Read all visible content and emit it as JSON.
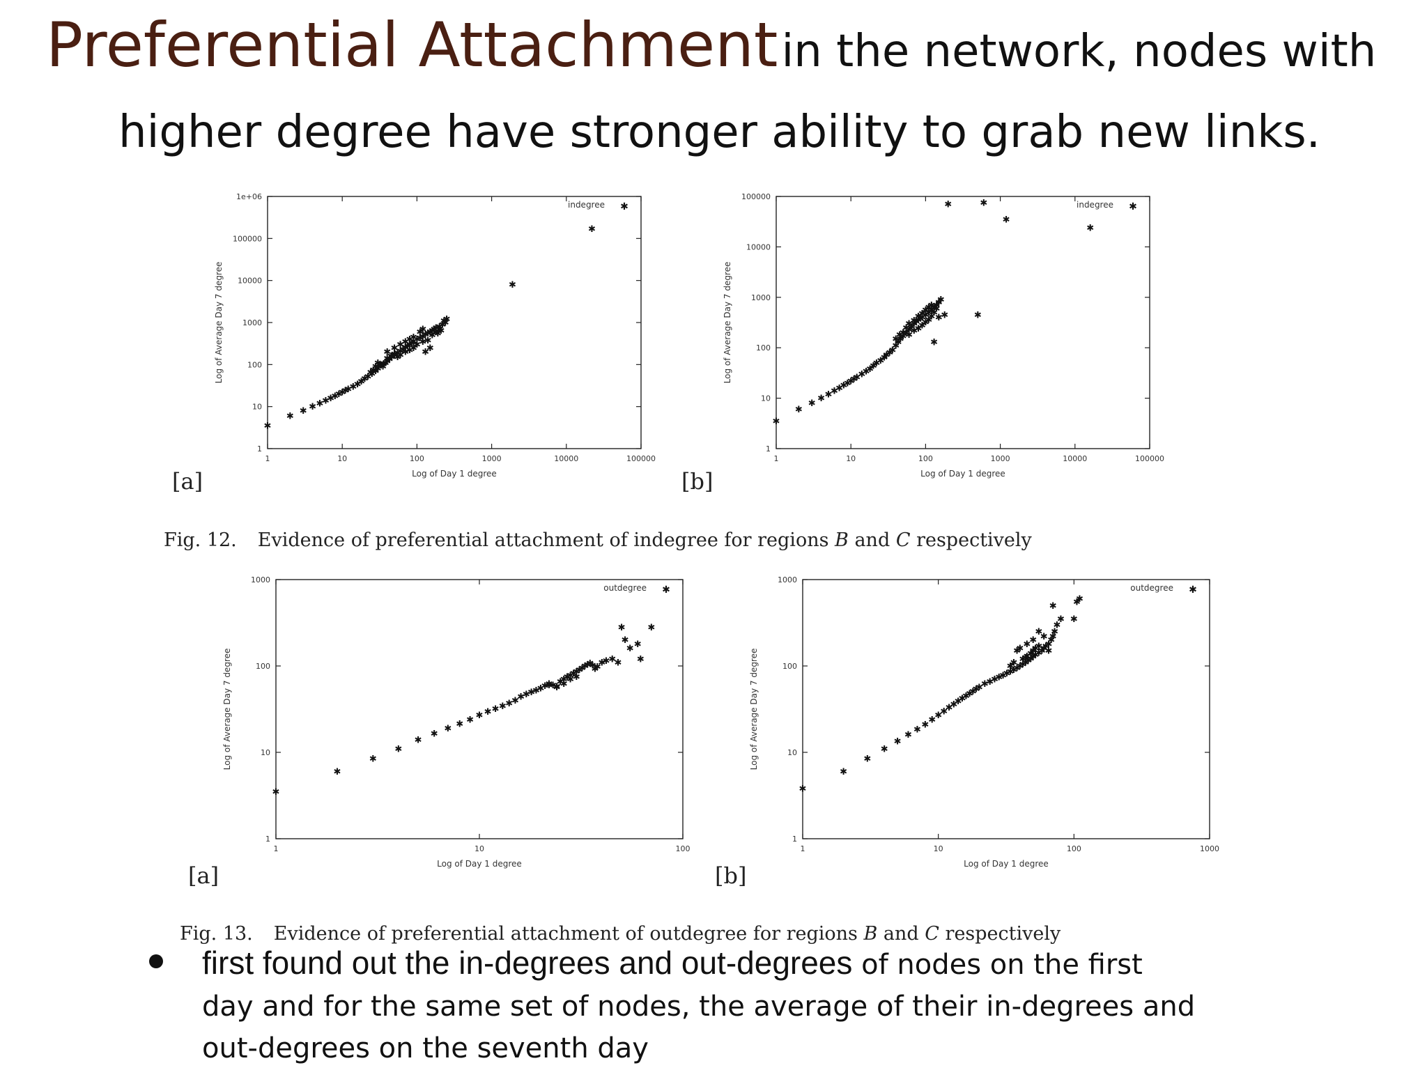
{
  "slide": {
    "title_main": "Preferential Attachment",
    "title_sub_1": "in the network, nodes with",
    "title_sub_2": "higher degree have stronger ability to grab new links.",
    "bullet": {
      "line1_a": "first found out the in-degrees and out-degrees",
      "line1_b": " of nodes on the first",
      "line2": "day and for the same set of nodes, the average of their in-degrees and",
      "line3": "out-degrees on the seventh day"
    }
  },
  "figures": {
    "fig12": {
      "num": "Fig. 12.",
      "text_before": "Evidence of preferential attachment of indegree for regions ",
      "region_b": "B",
      "and": " and ",
      "region_c": "C",
      "text_after": " respectively",
      "panel_a": "[a]",
      "panel_b": "[b]"
    },
    "fig13": {
      "num": "Fig. 13.",
      "text_before": "Evidence of preferential attachment of outdegree for regions ",
      "region_b": "B",
      "and": " and ",
      "region_c": "C",
      "text_after": " respectively",
      "panel_a": "[a]",
      "panel_b": "[b]"
    }
  },
  "chart_data": [
    {
      "id": "fig12a",
      "type": "scatter",
      "log_x": true,
      "log_y": true,
      "xlabel": "Log of Day 1 degree",
      "ylabel": "Log of Average Day 7 degree",
      "legend": "indegree",
      "legend_position": "top-right",
      "xlim": [
        1,
        100000
      ],
      "ylim": [
        1,
        1000000
      ],
      "xticks": [
        {
          "v": 1,
          "label": "1"
        },
        {
          "v": 10,
          "label": "10"
        },
        {
          "v": 100,
          "label": "100"
        },
        {
          "v": 1000,
          "label": "1000"
        },
        {
          "v": 10000,
          "label": "10000"
        },
        {
          "v": 100000,
          "label": "100000"
        }
      ],
      "yticks": [
        {
          "v": 1,
          "label": "1"
        },
        {
          "v": 10,
          "label": "10"
        },
        {
          "v": 100,
          "label": "100"
        },
        {
          "v": 1000,
          "label": "1000"
        },
        {
          "v": 10000,
          "label": "10000"
        },
        {
          "v": 100000,
          "label": "100000"
        },
        {
          "v": 1000000,
          "label": "1e+06"
        }
      ],
      "points": [
        [
          1,
          3.5
        ],
        [
          2,
          6
        ],
        [
          3,
          8
        ],
        [
          4,
          10
        ],
        [
          5,
          12
        ],
        [
          6,
          14
        ],
        [
          7,
          16
        ],
        [
          8,
          18
        ],
        [
          9,
          20
        ],
        [
          10,
          22
        ],
        [
          11,
          24
        ],
        [
          12,
          26
        ],
        [
          14,
          30
        ],
        [
          16,
          34
        ],
        [
          18,
          40
        ],
        [
          20,
          46
        ],
        [
          22,
          52
        ],
        [
          25,
          60
        ],
        [
          28,
          70
        ],
        [
          30,
          80
        ],
        [
          33,
          95
        ],
        [
          36,
          105
        ],
        [
          40,
          120
        ],
        [
          43,
          135
        ],
        [
          46,
          150
        ],
        [
          50,
          170
        ],
        [
          55,
          190
        ],
        [
          60,
          210
        ],
        [
          65,
          230
        ],
        [
          70,
          260
        ],
        [
          75,
          280
        ],
        [
          80,
          300
        ],
        [
          85,
          330
        ],
        [
          90,
          360
        ],
        [
          100,
          400
        ],
        [
          110,
          430
        ],
        [
          120,
          470
        ],
        [
          130,
          520
        ],
        [
          140,
          560
        ],
        [
          150,
          600
        ],
        [
          160,
          650
        ],
        [
          170,
          700
        ],
        [
          180,
          750
        ],
        [
          200,
          800
        ],
        [
          220,
          900
        ],
        [
          240,
          1000
        ],
        [
          250,
          1200
        ],
        [
          200,
          700
        ],
        [
          180,
          600
        ],
        [
          160,
          500
        ],
        [
          140,
          380
        ],
        [
          120,
          350
        ],
        [
          100,
          300
        ],
        [
          90,
          250
        ],
        [
          80,
          220
        ],
        [
          70,
          200
        ],
        [
          60,
          170
        ],
        [
          55,
          150
        ],
        [
          50,
          180
        ],
        [
          45,
          160
        ],
        [
          40,
          140
        ],
        [
          38,
          110
        ],
        [
          35,
          90
        ],
        [
          32,
          100
        ],
        [
          30,
          110
        ],
        [
          28,
          90
        ],
        [
          26,
          75
        ],
        [
          24,
          65
        ],
        [
          150,
          250
        ],
        [
          130,
          200
        ],
        [
          190,
          550
        ],
        [
          210,
          650
        ],
        [
          60,
          300
        ],
        [
          70,
          350
        ],
        [
          80,
          400
        ],
        [
          90,
          450
        ],
        [
          110,
          600
        ],
        [
          120,
          700
        ],
        [
          50,
          250
        ],
        [
          40,
          200
        ],
        [
          230,
          1100
        ],
        [
          1900,
          8000
        ],
        [
          22000,
          170000
        ]
      ]
    },
    {
      "id": "fig12b",
      "type": "scatter",
      "log_x": true,
      "log_y": true,
      "xlabel": "Log of Day 1 degree",
      "ylabel": "Log of Average Day 7 degree",
      "legend": "indegree",
      "legend_position": "top-right",
      "xlim": [
        1,
        100000
      ],
      "ylim": [
        1,
        100000
      ],
      "xticks": [
        {
          "v": 1,
          "label": "1"
        },
        {
          "v": 10,
          "label": "10"
        },
        {
          "v": 100,
          "label": "100"
        },
        {
          "v": 1000,
          "label": "1000"
        },
        {
          "v": 10000,
          "label": "10000"
        },
        {
          "v": 100000,
          "label": "100000"
        }
      ],
      "yticks": [
        {
          "v": 1,
          "label": "1"
        },
        {
          "v": 10,
          "label": "10"
        },
        {
          "v": 100,
          "label": "100"
        },
        {
          "v": 1000,
          "label": "1000"
        },
        {
          "v": 10000,
          "label": "10000"
        },
        {
          "v": 100000,
          "label": "100000"
        }
      ],
      "points": [
        [
          1,
          3.5
        ],
        [
          2,
          6
        ],
        [
          3,
          8
        ],
        [
          4,
          10
        ],
        [
          5,
          12
        ],
        [
          6,
          14
        ],
        [
          7,
          16
        ],
        [
          8,
          18
        ],
        [
          9,
          20
        ],
        [
          10,
          22
        ],
        [
          11,
          24
        ],
        [
          12,
          26
        ],
        [
          14,
          30
        ],
        [
          16,
          34
        ],
        [
          18,
          38
        ],
        [
          20,
          44
        ],
        [
          22,
          50
        ],
        [
          25,
          56
        ],
        [
          28,
          64
        ],
        [
          30,
          72
        ],
        [
          33,
          80
        ],
        [
          36,
          90
        ],
        [
          40,
          110
        ],
        [
          43,
          130
        ],
        [
          46,
          150
        ],
        [
          50,
          170
        ],
        [
          55,
          200
        ],
        [
          60,
          230
        ],
        [
          65,
          260
        ],
        [
          70,
          300
        ],
        [
          75,
          330
        ],
        [
          80,
          360
        ],
        [
          85,
          380
        ],
        [
          90,
          400
        ],
        [
          100,
          450
        ],
        [
          110,
          500
        ],
        [
          120,
          560
        ],
        [
          130,
          620
        ],
        [
          140,
          700
        ],
        [
          150,
          800
        ],
        [
          160,
          900
        ],
        [
          140,
          600
        ],
        [
          130,
          500
        ],
        [
          120,
          420
        ],
        [
          110,
          360
        ],
        [
          100,
          320
        ],
        [
          90,
          280
        ],
        [
          80,
          240
        ],
        [
          70,
          220
        ],
        [
          60,
          180
        ],
        [
          55,
          250
        ],
        [
          50,
          200
        ],
        [
          45,
          180
        ],
        [
          40,
          150
        ],
        [
          60,
          300
        ],
        [
          70,
          350
        ],
        [
          80,
          420
        ],
        [
          90,
          480
        ],
        [
          100,
          560
        ],
        [
          110,
          640
        ],
        [
          120,
          700
        ],
        [
          150,
          400
        ],
        [
          180,
          450
        ],
        [
          130,
          130
        ],
        [
          500,
          450
        ],
        [
          200,
          70000
        ],
        [
          600,
          75000
        ],
        [
          1200,
          35000
        ],
        [
          16000,
          24000
        ]
      ]
    },
    {
      "id": "fig13a",
      "type": "scatter",
      "log_x": true,
      "log_y": true,
      "xlabel": "Log of Day 1 degree",
      "ylabel": "Log of Average Day 7 degree",
      "legend": "outdegree",
      "legend_position": "top-right",
      "xlim": [
        1,
        100
      ],
      "ylim": [
        1,
        1000
      ],
      "xticks": [
        {
          "v": 1,
          "label": "1"
        },
        {
          "v": 10,
          "label": "10"
        },
        {
          "v": 100,
          "label": "100"
        }
      ],
      "yticks": [
        {
          "v": 1,
          "label": "1"
        },
        {
          "v": 10,
          "label": "10"
        },
        {
          "v": 100,
          "label": "100"
        },
        {
          "v": 1000,
          "label": "1000"
        }
      ],
      "points": [
        [
          1,
          3.5
        ],
        [
          2,
          6
        ],
        [
          3,
          8.5
        ],
        [
          4,
          11
        ],
        [
          5,
          14
        ],
        [
          6,
          16.5
        ],
        [
          7,
          19
        ],
        [
          8,
          21.5
        ],
        [
          9,
          24
        ],
        [
          10,
          27
        ],
        [
          11,
          29.5
        ],
        [
          12,
          32
        ],
        [
          13,
          34.5
        ],
        [
          14,
          37
        ],
        [
          15,
          40
        ],
        [
          16,
          44
        ],
        [
          17,
          47
        ],
        [
          18,
          50
        ],
        [
          19,
          52
        ],
        [
          20,
          55
        ],
        [
          21,
          59
        ],
        [
          22,
          62
        ],
        [
          23,
          60
        ],
        [
          24,
          58
        ],
        [
          25,
          66
        ],
        [
          26,
          70
        ],
        [
          27,
          75
        ],
        [
          28,
          78
        ],
        [
          29,
          82
        ],
        [
          30,
          86
        ],
        [
          31,
          90
        ],
        [
          32,
          95
        ],
        [
          33,
          100
        ],
        [
          34,
          104
        ],
        [
          35,
          108
        ],
        [
          36,
          102
        ],
        [
          37,
          93
        ],
        [
          38,
          98
        ],
        [
          40,
          110
        ],
        [
          42,
          115
        ],
        [
          45,
          120
        ],
        [
          48,
          110
        ],
        [
          50,
          280
        ],
        [
          52,
          200
        ],
        [
          55,
          160
        ],
        [
          60,
          180
        ],
        [
          62,
          120
        ],
        [
          70,
          280
        ],
        [
          30,
          75
        ],
        [
          28,
          70
        ],
        [
          26,
          62
        ],
        [
          24,
          57
        ],
        [
          22,
          60
        ]
      ]
    },
    {
      "id": "fig13b",
      "type": "scatter",
      "log_x": true,
      "log_y": true,
      "xlabel": "Log of Day 1 degree",
      "ylabel": "Log of Average Day 7 degree",
      "legend": "outdegree",
      "legend_position": "top-right",
      "xlim": [
        1,
        1000
      ],
      "ylim": [
        1,
        1000
      ],
      "xticks": [
        {
          "v": 1,
          "label": "1"
        },
        {
          "v": 10,
          "label": "10"
        },
        {
          "v": 100,
          "label": "100"
        },
        {
          "v": 1000,
          "label": "1000"
        }
      ],
      "yticks": [
        {
          "v": 1,
          "label": "1"
        },
        {
          "v": 10,
          "label": "10"
        },
        {
          "v": 100,
          "label": "100"
        },
        {
          "v": 1000,
          "label": "1000"
        }
      ],
      "points": [
        [
          1,
          3.8
        ],
        [
          2,
          6
        ],
        [
          3,
          8.5
        ],
        [
          4,
          11
        ],
        [
          5,
          13.5
        ],
        [
          6,
          16
        ],
        [
          7,
          18.5
        ],
        [
          8,
          21
        ],
        [
          9,
          24
        ],
        [
          10,
          27
        ],
        [
          11,
          30
        ],
        [
          12,
          33
        ],
        [
          13,
          36
        ],
        [
          14,
          39
        ],
        [
          15,
          42
        ],
        [
          16,
          45
        ],
        [
          17,
          48
        ],
        [
          18,
          51
        ],
        [
          19,
          54
        ],
        [
          20,
          57
        ],
        [
          22,
          62
        ],
        [
          24,
          66
        ],
        [
          26,
          70
        ],
        [
          28,
          74
        ],
        [
          30,
          78
        ],
        [
          32,
          82
        ],
        [
          34,
          86
        ],
        [
          36,
          90
        ],
        [
          38,
          95
        ],
        [
          40,
          100
        ],
        [
          42,
          105
        ],
        [
          44,
          110
        ],
        [
          46,
          116
        ],
        [
          48,
          122
        ],
        [
          50,
          128
        ],
        [
          52,
          135
        ],
        [
          55,
          142
        ],
        [
          58,
          150
        ],
        [
          60,
          160
        ],
        [
          62,
          170
        ],
        [
          65,
          180
        ],
        [
          68,
          200
        ],
        [
          70,
          220
        ],
        [
          72,
          250
        ],
        [
          75,
          300
        ],
        [
          80,
          350
        ],
        [
          42,
          120
        ],
        [
          45,
          130
        ],
        [
          48,
          140
        ],
        [
          50,
          150
        ],
        [
          52,
          160
        ],
        [
          55,
          170
        ],
        [
          50,
          200
        ],
        [
          45,
          180
        ],
        [
          40,
          160
        ],
        [
          38,
          150
        ],
        [
          55,
          250
        ],
        [
          60,
          220
        ],
        [
          65,
          150
        ],
        [
          70,
          500
        ],
        [
          100,
          350
        ],
        [
          105,
          550
        ],
        [
          110,
          600
        ],
        [
          36,
          110
        ],
        [
          34,
          100
        ],
        [
          44,
          125
        ]
      ]
    }
  ]
}
